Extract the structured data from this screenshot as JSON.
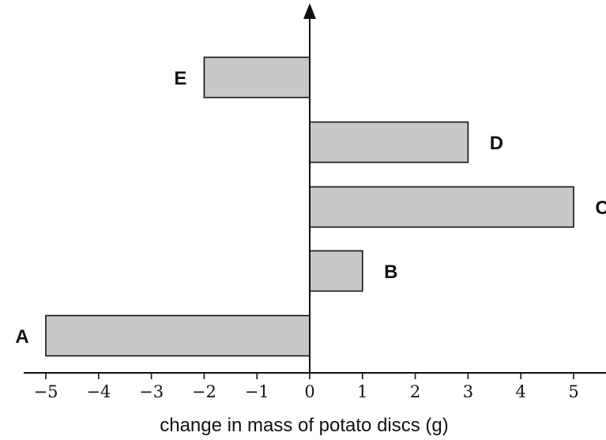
{
  "chart_data": {
    "type": "bar",
    "orientation": "horizontal",
    "categories": [
      "A",
      "B",
      "C",
      "D",
      "E"
    ],
    "values": [
      -5,
      1,
      5,
      3,
      -2
    ],
    "xlabel": "change in mass of potato discs (g)",
    "ylabel": "",
    "xlim": [
      -5,
      5
    ],
    "xticks": [
      -5,
      -4,
      -3,
      -2,
      -1,
      0,
      1,
      2,
      3,
      4,
      5
    ],
    "xtick_labels": [
      "−5",
      "−4",
      "−3",
      "−2",
      "−1",
      "0",
      "1",
      "2",
      "3",
      "4",
      "5"
    ],
    "grid": false,
    "bar_color": "#c8c8c8"
  }
}
